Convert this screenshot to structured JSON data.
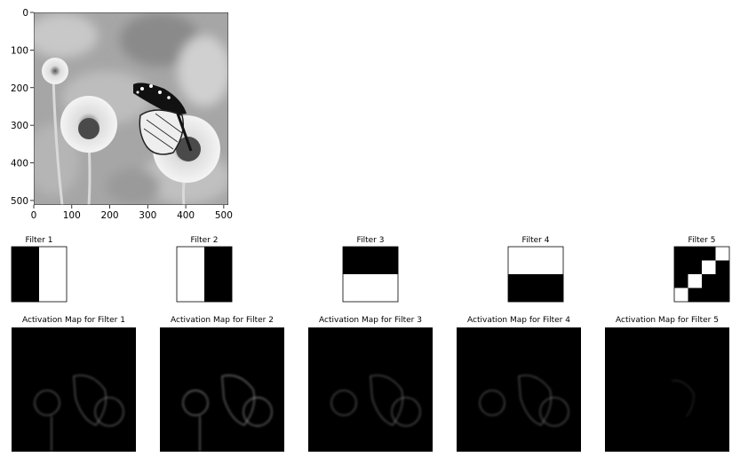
{
  "chart_data": [
    {
      "type": "heatmap",
      "title": "",
      "xlabel": "",
      "ylabel": "",
      "xlim": [
        0,
        512
      ],
      "ylim": [
        512,
        0
      ],
      "x_ticks": [
        "0",
        "100",
        "200",
        "300",
        "400",
        "500"
      ],
      "y_ticks": [
        "0",
        "100",
        "200",
        "300",
        "400",
        "500"
      ],
      "colormap": "gray"
    },
    {
      "type": "heatmap",
      "title": "Filter 1",
      "matrix": [
        [
          0,
          1
        ],
        [
          0,
          1
        ]
      ]
    },
    {
      "type": "heatmap",
      "title": "Filter 2",
      "matrix": [
        [
          1,
          0
        ],
        [
          1,
          0
        ]
      ]
    },
    {
      "type": "heatmap",
      "title": "Filter 3",
      "matrix": [
        [
          0,
          0
        ],
        [
          1,
          1
        ]
      ]
    },
    {
      "type": "heatmap",
      "title": "Filter 4",
      "matrix": [
        [
          1,
          1
        ],
        [
          0,
          0
        ]
      ]
    },
    {
      "type": "heatmap",
      "title": "Filter 5",
      "matrix": [
        [
          0,
          0,
          0,
          1
        ],
        [
          0,
          0,
          1,
          0
        ],
        [
          0,
          1,
          0,
          0
        ],
        [
          1,
          0,
          0,
          0
        ]
      ]
    },
    {
      "type": "heatmap",
      "title": "Activation Map for Filter 1",
      "colormap": "gray"
    },
    {
      "type": "heatmap",
      "title": "Activation Map for Filter 2",
      "colormap": "gray"
    },
    {
      "type": "heatmap",
      "title": "Activation Map for Filter 3",
      "colormap": "gray"
    },
    {
      "type": "heatmap",
      "title": "Activation Map for Filter 4",
      "colormap": "gray"
    },
    {
      "type": "heatmap",
      "title": "Activation Map for Filter 5",
      "colormap": "gray"
    }
  ],
  "colors": {
    "background": "#ffffff",
    "on": "#ffffff",
    "off": "#000000",
    "photo_bg": "#a9a9a9"
  }
}
